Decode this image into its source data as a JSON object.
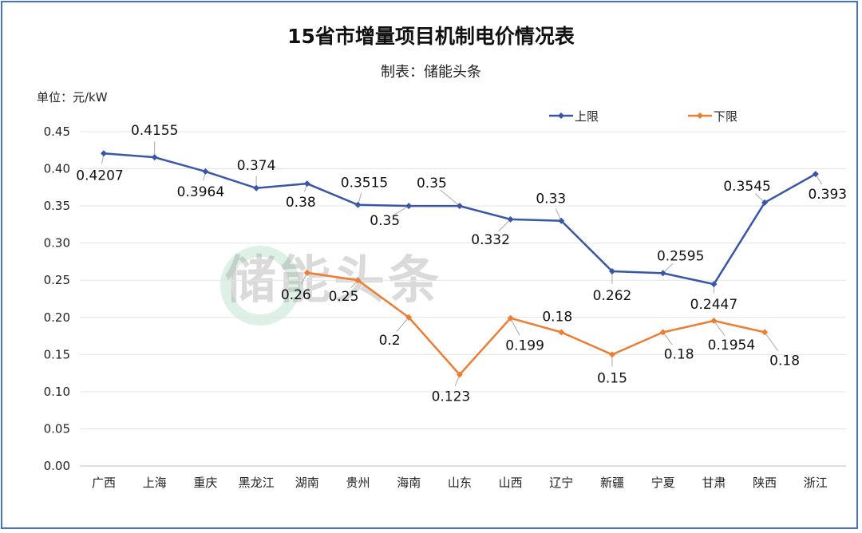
{
  "title": "15省市增量项目机制电价情况表",
  "subtitle": "制表：储能头条",
  "unit": "单位：元/kW",
  "watermark": "储能头条",
  "chart_data": {
    "type": "line",
    "title": "15省市增量项目机制电价情况表",
    "ylabel": "单位：元/kW",
    "ylim": [
      0,
      0.45
    ],
    "yticks": [
      "0.00",
      "0.05",
      "0.10",
      "0.15",
      "0.20",
      "0.25",
      "0.30",
      "0.35",
      "0.40",
      "0.45"
    ],
    "grid": true,
    "legend": "top-right",
    "categories": [
      "广西",
      "上海",
      "重庆",
      "黑龙江",
      "湖南",
      "贵州",
      "海南",
      "山东",
      "山西",
      "辽宁",
      "新疆",
      "宁夏",
      "甘肃",
      "陕西",
      "浙江"
    ],
    "series": [
      {
        "name": "上限",
        "color": "#3A56A8",
        "values": [
          0.4207,
          0.4155,
          0.3964,
          0.374,
          0.38,
          0.3515,
          0.35,
          0.35,
          0.332,
          0.33,
          0.262,
          0.2595,
          0.2447,
          0.3545,
          0.393
        ]
      },
      {
        "name": "下限",
        "color": "#ED7D31",
        "values": [
          null,
          null,
          null,
          null,
          0.26,
          0.25,
          0.2,
          0.123,
          0.199,
          0.18,
          0.15,
          0.18,
          0.1954,
          0.18,
          null
        ]
      }
    ]
  }
}
